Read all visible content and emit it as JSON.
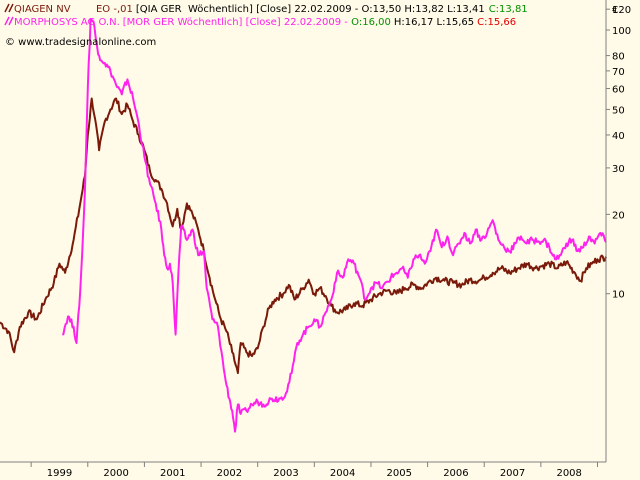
{
  "colors": {
    "background": "#fffbe8",
    "qiagen": "#7a1a0a",
    "morphosys": "#ff22ee",
    "open_value": "#009000",
    "close_value": "#e00000",
    "axis": "#808080",
    "text": "#000000"
  },
  "header": {
    "line1": {
      "name": "QIAGEN NV        EO -,01",
      "desc": "[QIA GER  Wöchentlich] [Close] 22.02.2009 - O:13,50 H:13,82 L:13,41",
      "close": "C:13,81"
    },
    "line2": {
      "name": "MORPHOSYS AG O.N.",
      "desc": "[MOR GER  Wöchentlich] [Close] 22.02.2009 -",
      "open": "O:16,00",
      "hl": "H:16,17 L:15,65",
      "close": "C:15,66"
    },
    "copyright": "© www.tradesignalonline.com",
    "currency": "€"
  },
  "chart_data": {
    "type": "line",
    "y_scale": "log",
    "ylim": [
      2.3,
      130
    ],
    "xlim": [
      1998.45,
      2009.15
    ],
    "y_ticks": [
      120,
      100,
      80,
      70,
      60,
      50,
      40,
      30,
      20,
      10
    ],
    "x_ticks": [
      "1999",
      "2000",
      "2001",
      "2002",
      "2003",
      "2004",
      "2005",
      "2006",
      "2007",
      "2008"
    ],
    "x_tick_values": [
      1999,
      2000,
      2001,
      2002,
      2003,
      2004,
      2005,
      2006,
      2007,
      2008
    ],
    "series": [
      {
        "name": "QIAGEN NV",
        "points": [
          [
            1998.45,
            7.8
          ],
          [
            1998.6,
            7.2
          ],
          [
            1998.7,
            6.0
          ],
          [
            1998.8,
            7.5
          ],
          [
            1998.95,
            8.5
          ],
          [
            1999.1,
            8.0
          ],
          [
            1999.25,
            9.5
          ],
          [
            1999.4,
            11.0
          ],
          [
            1999.5,
            13.0
          ],
          [
            1999.6,
            12.0
          ],
          [
            1999.75,
            16.0
          ],
          [
            1999.85,
            21.0
          ],
          [
            1999.95,
            28.0
          ],
          [
            2000.0,
            40.0
          ],
          [
            2000.07,
            55.0
          ],
          [
            2000.13,
            46.0
          ],
          [
            2000.2,
            35.0
          ],
          [
            2000.3,
            45.0
          ],
          [
            2000.4,
            50.0
          ],
          [
            2000.5,
            55.0
          ],
          [
            2000.6,
            48.0
          ],
          [
            2000.7,
            52.0
          ],
          [
            2000.8,
            45.0
          ],
          [
            2000.9,
            40.0
          ],
          [
            2001.0,
            35.0
          ],
          [
            2001.1,
            29.0
          ],
          [
            2001.2,
            27.0
          ],
          [
            2001.3,
            25.0
          ],
          [
            2001.4,
            22.0
          ],
          [
            2001.5,
            18.0
          ],
          [
            2001.58,
            21.0
          ],
          [
            2001.65,
            17.5
          ],
          [
            2001.75,
            22.0
          ],
          [
            2001.85,
            20.0
          ],
          [
            2001.95,
            17.5
          ],
          [
            2002.05,
            14.5
          ],
          [
            2002.15,
            11.5
          ],
          [
            2002.25,
            9.5
          ],
          [
            2002.35,
            8.0
          ],
          [
            2002.45,
            7.2
          ],
          [
            2002.55,
            6.0
          ],
          [
            2002.65,
            5.0
          ],
          [
            2002.7,
            6.5
          ],
          [
            2002.8,
            6.0
          ],
          [
            2002.9,
            5.8
          ],
          [
            2003.0,
            6.2
          ],
          [
            2003.1,
            7.5
          ],
          [
            2003.2,
            8.8
          ],
          [
            2003.3,
            9.5
          ],
          [
            2003.45,
            10.0
          ],
          [
            2003.55,
            10.8
          ],
          [
            2003.65,
            9.5
          ],
          [
            2003.8,
            10.5
          ],
          [
            2003.9,
            11.3
          ],
          [
            2004.0,
            10.0
          ],
          [
            2004.1,
            10.5
          ],
          [
            2004.2,
            9.8
          ],
          [
            2004.3,
            9.0
          ],
          [
            2004.4,
            8.5
          ],
          [
            2004.55,
            8.7
          ],
          [
            2004.7,
            9.2
          ],
          [
            2004.85,
            9.0
          ],
          [
            2005.0,
            9.5
          ],
          [
            2005.15,
            10.0
          ],
          [
            2005.3,
            10.3
          ],
          [
            2005.45,
            10.0
          ],
          [
            2005.6,
            10.5
          ],
          [
            2005.75,
            10.8
          ],
          [
            2005.9,
            10.5
          ],
          [
            2006.0,
            11.0
          ],
          [
            2006.15,
            11.5
          ],
          [
            2006.3,
            11.2
          ],
          [
            2006.45,
            11.0
          ],
          [
            2006.6,
            10.8
          ],
          [
            2006.75,
            11.3
          ],
          [
            2006.9,
            11.2
          ],
          [
            2007.0,
            11.5
          ],
          [
            2007.15,
            12.0
          ],
          [
            2007.3,
            12.5
          ],
          [
            2007.45,
            12.0
          ],
          [
            2007.6,
            12.5
          ],
          [
            2007.75,
            13.0
          ],
          [
            2007.9,
            12.5
          ],
          [
            2008.0,
            12.7
          ],
          [
            2008.15,
            13.0
          ],
          [
            2008.3,
            12.5
          ],
          [
            2008.45,
            13.2
          ],
          [
            2008.6,
            12.0
          ],
          [
            2008.7,
            11.2
          ],
          [
            2008.8,
            12.5
          ],
          [
            2008.9,
            13.0
          ],
          [
            2009.0,
            13.5
          ],
          [
            2009.15,
            13.81
          ]
        ]
      },
      {
        "name": "MORPHOSYS AG O.N.",
        "points": [
          [
            1999.55,
            7.0
          ],
          [
            1999.65,
            8.2
          ],
          [
            1999.75,
            7.5
          ],
          [
            1999.8,
            6.5
          ],
          [
            1999.85,
            9.0
          ],
          [
            1999.9,
            14.0
          ],
          [
            1999.95,
            25.0
          ],
          [
            2000.0,
            60.0
          ],
          [
            2000.05,
            110.0
          ],
          [
            2000.1,
            108.0
          ],
          [
            2000.15,
            90.0
          ],
          [
            2000.2,
            80.0
          ],
          [
            2000.3,
            75.0
          ],
          [
            2000.4,
            70.0
          ],
          [
            2000.5,
            62.0
          ],
          [
            2000.6,
            57.0
          ],
          [
            2000.7,
            65.0
          ],
          [
            2000.8,
            55.0
          ],
          [
            2000.9,
            44.0
          ],
          [
            2001.0,
            33.0
          ],
          [
            2001.1,
            26.0
          ],
          [
            2001.2,
            22.0
          ],
          [
            2001.3,
            17.5
          ],
          [
            2001.35,
            14.0
          ],
          [
            2001.4,
            12.5
          ],
          [
            2001.45,
            13.0
          ],
          [
            2001.5,
            11.0
          ],
          [
            2001.55,
            7.0
          ],
          [
            2001.6,
            12.0
          ],
          [
            2001.65,
            18.0
          ],
          [
            2001.75,
            16.0
          ],
          [
            2001.85,
            17.5
          ],
          [
            2001.95,
            14.0
          ],
          [
            2002.05,
            14.5
          ],
          [
            2002.1,
            10.5
          ],
          [
            2002.2,
            8.0
          ],
          [
            2002.3,
            7.5
          ],
          [
            2002.4,
            5.2
          ],
          [
            2002.45,
            4.5
          ],
          [
            2002.5,
            4.0
          ],
          [
            2002.55,
            3.6
          ],
          [
            2002.6,
            3.0
          ],
          [
            2002.65,
            3.8
          ],
          [
            2002.7,
            3.5
          ],
          [
            2002.8,
            3.6
          ],
          [
            2002.9,
            3.8
          ],
          [
            2003.0,
            3.9
          ],
          [
            2003.1,
            3.8
          ],
          [
            2003.25,
            4.0
          ],
          [
            2003.4,
            4.0
          ],
          [
            2003.5,
            4.2
          ],
          [
            2003.6,
            5.0
          ],
          [
            2003.7,
            6.5
          ],
          [
            2003.8,
            7.0
          ],
          [
            2003.9,
            7.5
          ],
          [
            2004.0,
            8.0
          ],
          [
            2004.1,
            7.5
          ],
          [
            2004.2,
            8.5
          ],
          [
            2004.3,
            9.5
          ],
          [
            2004.4,
            12.0
          ],
          [
            2004.5,
            11.5
          ],
          [
            2004.6,
            13.5
          ],
          [
            2004.7,
            13.0
          ],
          [
            2004.8,
            11.5
          ],
          [
            2004.9,
            9.5
          ],
          [
            2005.0,
            10.5
          ],
          [
            2005.1,
            11.0
          ],
          [
            2005.2,
            10.5
          ],
          [
            2005.35,
            11.5
          ],
          [
            2005.45,
            12.0
          ],
          [
            2005.55,
            12.5
          ],
          [
            2005.65,
            11.5
          ],
          [
            2005.75,
            13.5
          ],
          [
            2005.85,
            14.0
          ],
          [
            2005.95,
            13.0
          ],
          [
            2006.05,
            14.5
          ],
          [
            2006.15,
            17.5
          ],
          [
            2006.25,
            15.0
          ],
          [
            2006.35,
            16.5
          ],
          [
            2006.45,
            14.0
          ],
          [
            2006.55,
            15.5
          ],
          [
            2006.65,
            17.0
          ],
          [
            2006.75,
            15.5
          ],
          [
            2006.85,
            17.5
          ],
          [
            2006.95,
            16.0
          ],
          [
            2007.05,
            17.0
          ],
          [
            2007.15,
            19.0
          ],
          [
            2007.25,
            16.0
          ],
          [
            2007.35,
            15.0
          ],
          [
            2007.45,
            14.5
          ],
          [
            2007.55,
            15.5
          ],
          [
            2007.65,
            16.5
          ],
          [
            2007.75,
            15.5
          ],
          [
            2007.85,
            16.0
          ],
          [
            2007.95,
            15.8
          ],
          [
            2008.05,
            16.0
          ],
          [
            2008.15,
            15.0
          ],
          [
            2008.25,
            13.5
          ],
          [
            2008.35,
            14.0
          ],
          [
            2008.45,
            15.5
          ],
          [
            2008.55,
            16.0
          ],
          [
            2008.65,
            14.5
          ],
          [
            2008.75,
            15.0
          ],
          [
            2008.85,
            16.5
          ],
          [
            2008.95,
            15.5
          ],
          [
            2009.05,
            17.0
          ],
          [
            2009.15,
            15.66
          ]
        ]
      }
    ]
  }
}
